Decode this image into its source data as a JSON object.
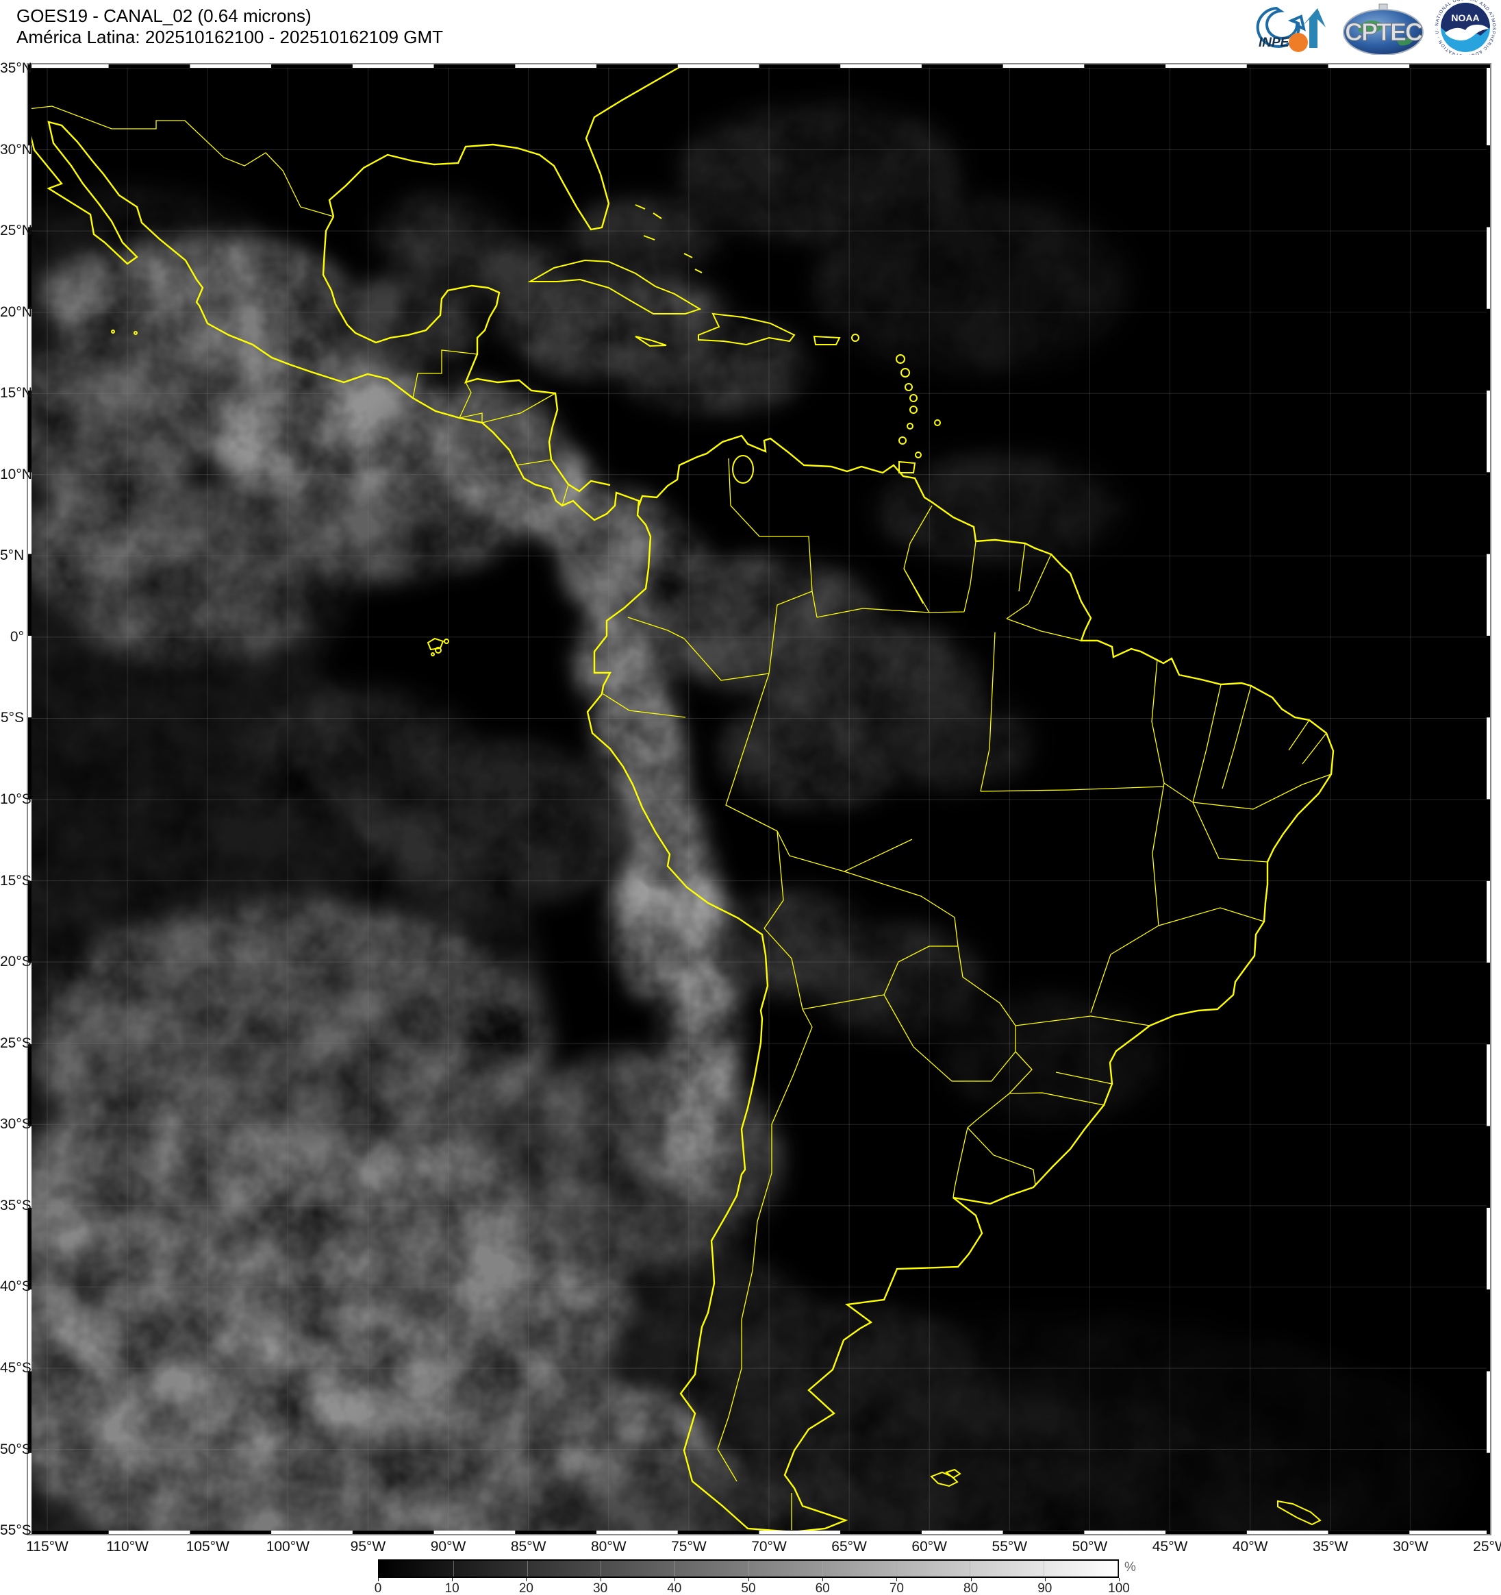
{
  "header": {
    "title_line1": "GOES19 - CANAL_02 (0.64 microns)",
    "title_line2": "América Latina: 202510162100 - 202510162109 GMT"
  },
  "logos": {
    "inpe_label": "INPE",
    "cptec_label": "CPTEC",
    "noaa_label": "NOAA",
    "noaa_ring_text": "NATIONAL OCEANIC AND ATMOSPHERIC ADMINISTRATION · U.S. DEPARTMENT OF COMMERCE ·"
  },
  "map": {
    "line_color": "#ffff00",
    "grid_step_deg": 5,
    "extent": {
      "north": "35°N",
      "south": "55°S",
      "west": "115°W",
      "east": "25°W"
    },
    "lat_labels": [
      "35°N",
      "30°N",
      "25°N",
      "20°N",
      "15°N",
      "10°N",
      "5°N",
      "0°",
      "5°S",
      "10°S",
      "15°S",
      "20°S",
      "25°S",
      "30°S",
      "35°S",
      "40°S",
      "45°S",
      "50°S",
      "55°S"
    ],
    "lon_labels": [
      "115°W",
      "110°W",
      "105°W",
      "100°W",
      "95°W",
      "90°W",
      "85°W",
      "80°W",
      "75°W",
      "70°W",
      "65°W",
      "60°W",
      "55°W",
      "50°W",
      "45°W",
      "40°W",
      "35°W",
      "30°W",
      "25°W"
    ]
  },
  "colorbar": {
    "ticks": [
      "0",
      "10",
      "20",
      "30",
      "40",
      "50",
      "60",
      "70",
      "80",
      "90",
      "100"
    ],
    "unit": "%",
    "min": 0,
    "max": 100
  }
}
